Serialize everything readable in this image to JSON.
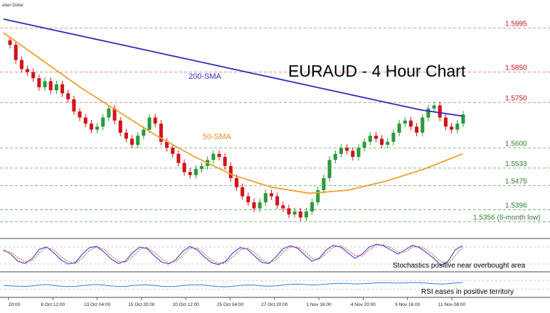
{
  "header": {
    "corner_label": "alian Dollar"
  },
  "chart_data": [
    {
      "type": "candlestick",
      "title": "EURAUD - 4 Hour Chart",
      "symbol": "EURAUD",
      "timeframe": "4 Hour",
      "x_ticks": [
        "20:00",
        "8 Oct 12:00",
        "13 Oct 04:00",
        "15 Oct 20:00",
        "20 Oct 12:00",
        "25 Oct 04:00",
        "27 Oct 20:00",
        "1 Nov 16:00",
        "4 Nov 20:00",
        "9 Nov 16:00",
        "11 Nov 08:00"
      ],
      "ylim": [
        1.531,
        1.606
      ],
      "levels": [
        {
          "value": 1.5995,
          "label": "1.5995",
          "style": "red-dashed"
        },
        {
          "value": 1.585,
          "label": "1.5850",
          "style": "red-dashed"
        },
        {
          "value": 1.575,
          "label": "1.5750",
          "style": "red-dashed"
        },
        {
          "value": 1.56,
          "label": "1.5600",
          "style": "green-dashed"
        },
        {
          "value": 1.5533,
          "label": "1.5533",
          "style": "green-dashed"
        },
        {
          "value": 1.5475,
          "label": "1.5475",
          "style": "green-dashed"
        },
        {
          "value": 1.5396,
          "label": "1.5396",
          "style": "green-dashed"
        },
        {
          "value": 1.5356,
          "label": "1.5356 (8-month low)",
          "style": "green-dashed"
        }
      ],
      "close_series": [
        1.594,
        1.589,
        1.586,
        1.585,
        1.583,
        1.58,
        1.582,
        1.579,
        1.581,
        1.578,
        1.576,
        1.572,
        1.57,
        1.568,
        1.566,
        1.567,
        1.57,
        1.573,
        1.569,
        1.565,
        1.563,
        1.561,
        1.564,
        1.566,
        1.57,
        1.568,
        1.562,
        1.56,
        1.558,
        1.555,
        1.552,
        1.551,
        1.553,
        1.554,
        1.556,
        1.558,
        1.557,
        1.554,
        1.55,
        1.547,
        1.544,
        1.542,
        1.54,
        1.542,
        1.545,
        1.544,
        1.541,
        1.54,
        1.538,
        1.539,
        1.537,
        1.539,
        1.542,
        1.546,
        1.55,
        1.556,
        1.558,
        1.56,
        1.559,
        1.557,
        1.56,
        1.562,
        1.564,
        1.563,
        1.561,
        1.562,
        1.565,
        1.568,
        1.569,
        1.567,
        1.565,
        1.57,
        1.573,
        1.574,
        1.57,
        1.567,
        1.566,
        1.568,
        1.571
      ],
      "sma": [
        {
          "name": "200-SMA",
          "color": "#2b2bbf",
          "values": [
            1.6025,
            1.5995,
            1.5965,
            1.5935,
            1.5905,
            1.5875,
            1.5845,
            1.5815,
            1.5785,
            1.5755,
            1.5725,
            1.5705
          ]
        },
        {
          "name": "50-SMA",
          "color": "#f0a030",
          "values": [
            1.598,
            1.589,
            1.58,
            1.572,
            1.564,
            1.557,
            1.551,
            1.547,
            1.545,
            1.546,
            1.549,
            1.553,
            1.558
          ]
        }
      ],
      "colors": {
        "bull": "#2a9a3a",
        "bear": "#d0141c",
        "resistance": "#e06060",
        "support": "#5aa05a"
      }
    },
    {
      "type": "line",
      "name": "Stochastics",
      "annotation": "Stochastics positive near overbought area",
      "ylim": [
        0,
        100
      ],
      "series": [
        {
          "color": "#2b2bbf",
          "values": [
            70,
            55,
            30,
            22,
            40,
            72,
            80,
            60,
            35,
            20,
            25,
            55,
            78,
            82,
            62,
            38,
            22,
            30,
            60,
            80,
            75,
            50,
            28,
            20,
            35,
            65,
            82,
            70,
            45,
            25,
            18,
            30,
            60,
            78,
            72,
            48,
            26,
            22,
            45,
            74,
            84,
            76,
            52,
            30,
            40,
            70,
            86,
            80,
            60,
            40,
            55,
            80,
            90,
            84,
            70,
            55,
            70,
            86,
            78,
            60,
            40,
            15,
            30,
            70,
            85
          ]
        },
        {
          "color": "#d03a3a",
          "values": [
            65,
            62,
            42,
            28,
            32,
            60,
            78,
            70,
            46,
            28,
            22,
            42,
            68,
            80,
            72,
            50,
            30,
            26,
            46,
            72,
            78,
            62,
            40,
            24,
            28,
            52,
            76,
            76,
            56,
            34,
            22,
            24,
            46,
            70,
            76,
            60,
            36,
            24,
            34,
            62,
            80,
            80,
            64,
            40,
            36,
            58,
            80,
            84,
            70,
            50,
            48,
            70,
            86,
            88,
            78,
            62,
            62,
            80,
            82,
            70,
            50,
            28,
            22,
            50,
            78
          ]
        }
      ]
    },
    {
      "type": "line",
      "name": "RSI",
      "annotation": "RSI eases in positive territory",
      "ylim": [
        0,
        100
      ],
      "series": [
        {
          "color": "#2f7fd6",
          "values": [
            48,
            46,
            44,
            43,
            45,
            50,
            52,
            48,
            44,
            42,
            43,
            47,
            50,
            52,
            49,
            45,
            42,
            43,
            47,
            50,
            51,
            48,
            44,
            42,
            43,
            47,
            50,
            51,
            49,
            45,
            42,
            41,
            44,
            48,
            50,
            49,
            46,
            44,
            46,
            50,
            53,
            54,
            52,
            50,
            51,
            54,
            57,
            58,
            57,
            55,
            56,
            58,
            60,
            61,
            60,
            59,
            60,
            62,
            61,
            59,
            56,
            54,
            56,
            60,
            61
          ]
        }
      ]
    }
  ]
}
